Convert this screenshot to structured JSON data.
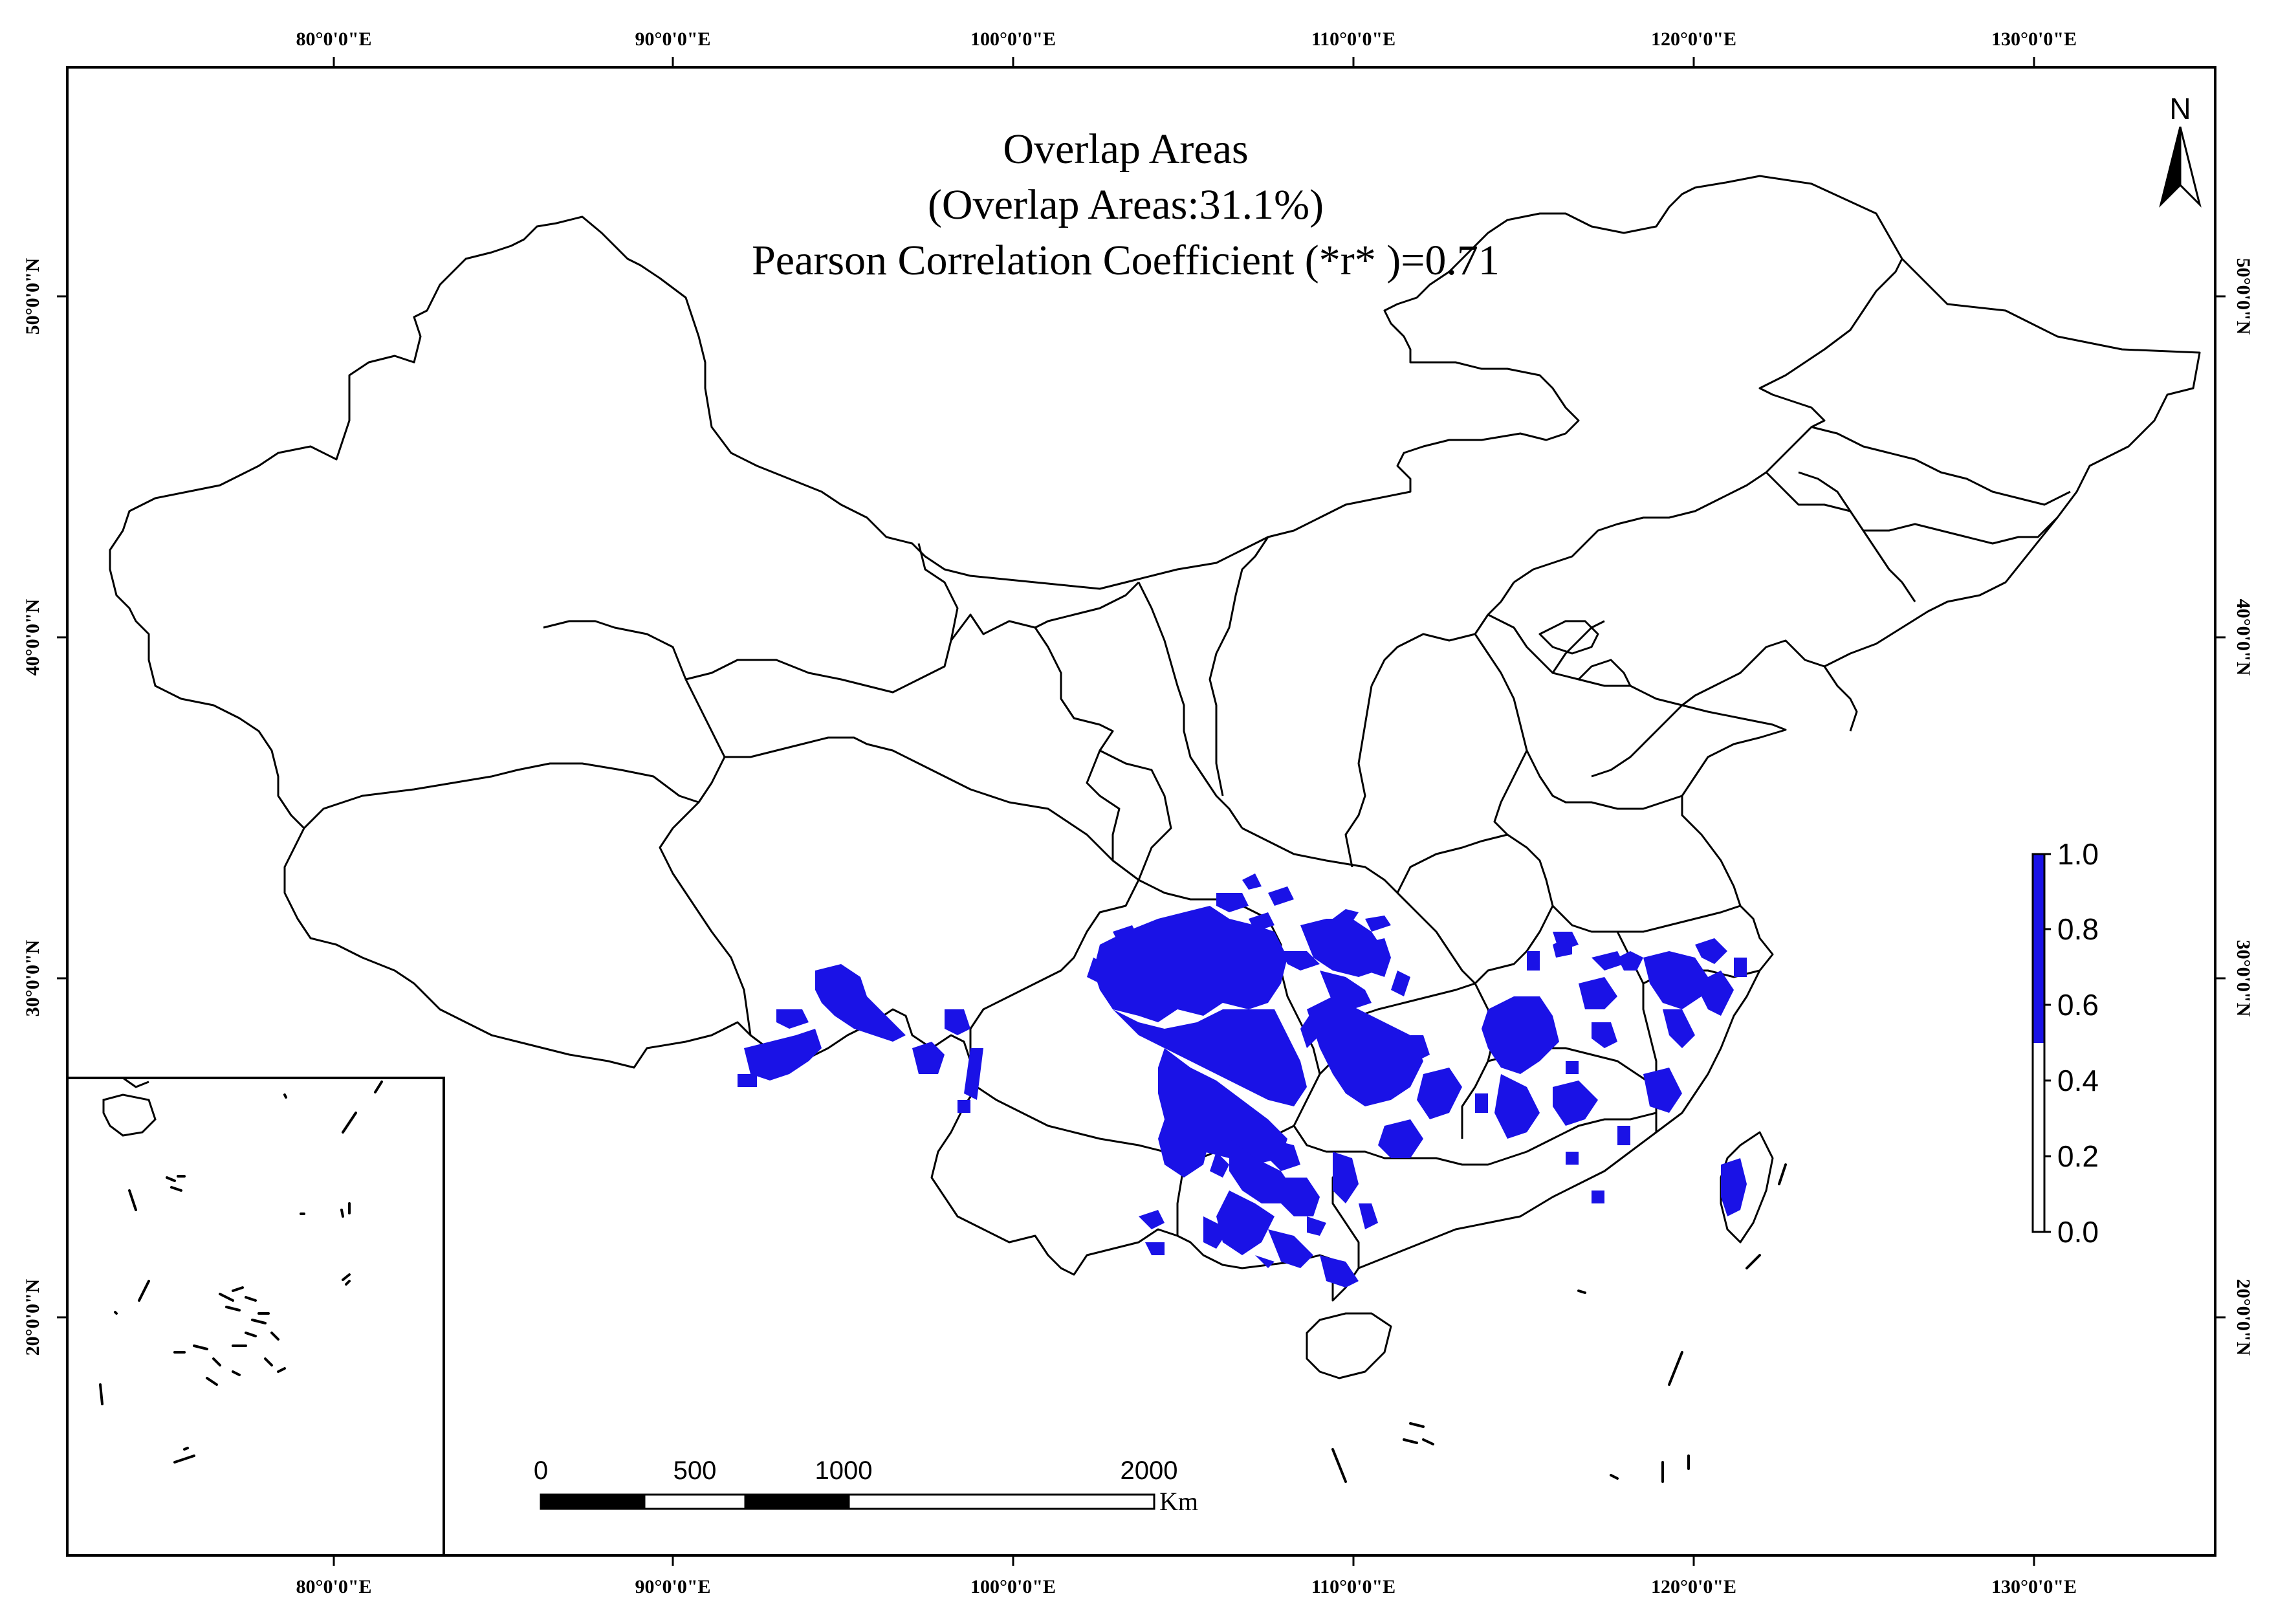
{
  "map": {
    "title_lines": [
      "Overlap Areas",
      "(Overlap Areas:31.1%)",
      "Pearson Correlation Coefficient (*r* )=0.71"
    ],
    "longitude_labels": [
      "80°0'0\"E",
      "90°0'0\"E",
      "100°0'0\"E",
      "110°0'0\"E",
      "120°0'0\"E",
      "130°0'0\"E"
    ],
    "latitude_labels": [
      "50°0'0\"N",
      "40°0'0\"N",
      "30°0'0\"N",
      "20°0'0\"N"
    ],
    "north_arrow_label": "N",
    "legend": {
      "labels": [
        "1.0",
        "0.8",
        "0.6",
        "0.4",
        "0.2",
        "0.0"
      ],
      "range": [
        0.0,
        1.0
      ],
      "highlight_threshold": 0.5,
      "highlight_color": "#1a12e6",
      "base_color": "#ffffff"
    },
    "scale_bar": {
      "labels": [
        "0",
        "500",
        "1000",
        "2000"
      ],
      "unit": "Km"
    },
    "colors": {
      "overlap": "#1a12e6",
      "boundary": "#000000",
      "background": "#ffffff"
    }
  }
}
